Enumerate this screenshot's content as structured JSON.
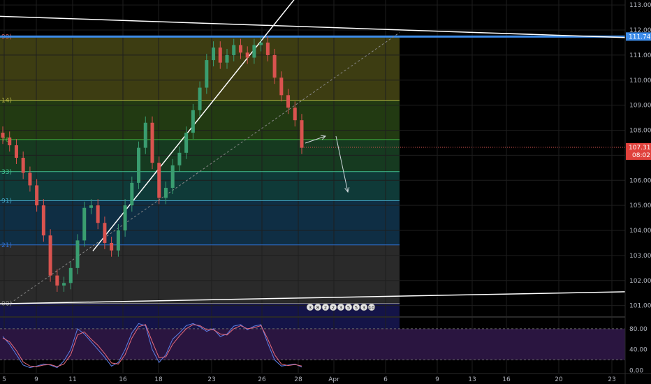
{
  "chart_data": [
    {
      "type": "candlestick",
      "title": "",
      "x_ticks": [
        "5",
        "9",
        "11",
        "16",
        "18",
        "23",
        "26",
        "28",
        "Apr",
        "6",
        "9",
        "13",
        "16",
        "20",
        "23"
      ],
      "y_ticks": [
        "101.000",
        "102.000",
        "103.000",
        "104.000",
        "105.000",
        "106.000",
        "107.000",
        "108.000",
        "109.000",
        "110.000",
        "111.000",
        "112.000",
        "113.000"
      ],
      "ylim": [
        100.6,
        113.2
      ],
      "price_labels": {
        "resistance": "111.741",
        "last": "107.319",
        "countdown": "08:02"
      },
      "fib_level_labels": [
        "99)",
        "14)",
        "76)",
        "33)",
        "91)",
        "21)",
        "00)"
      ],
      "fib_levels": [
        111.741,
        109.201,
        107.627,
        106.349,
        105.186,
        103.421,
        101.085
      ],
      "series": [
        {
          "values": [
            107.7,
            107.4,
            106.9,
            106.3,
            105.8,
            105.0,
            103.8,
            102.2,
            101.8,
            101.9,
            102.5,
            103.6,
            104.9,
            105.0,
            104.3,
            103.5,
            103.2,
            104.0,
            105.0,
            105.9,
            107.3,
            108.3,
            106.7,
            105.3,
            105.7,
            106.6,
            107.1,
            107.9,
            108.8,
            109.7,
            110.8,
            111.3,
            110.7,
            111.0,
            111.4,
            111.1,
            110.9,
            111.4,
            111.5,
            111.0,
            110.1,
            109.4,
            108.9,
            108.4,
            107.3
          ]
        }
      ],
      "events": [
        "3",
        "8",
        "2",
        "2",
        "3",
        "5",
        "5",
        "3",
        "10"
      ]
    },
    {
      "type": "line",
      "title": "",
      "y_ticks": [
        "80.00",
        "40.00",
        "0.00"
      ],
      "ylim": [
        -5,
        100
      ],
      "series": [
        {
          "color": "#5b7ee8",
          "values": [
            65,
            50,
            30,
            10,
            5,
            8,
            12,
            10,
            5,
            18,
            40,
            80,
            70,
            55,
            40,
            25,
            8,
            15,
            40,
            72,
            90,
            86,
            40,
            15,
            30,
            60,
            72,
            86,
            90,
            84,
            75,
            80,
            65,
            70,
            85,
            88,
            78,
            85,
            88,
            52,
            20,
            8,
            10,
            12,
            6
          ]
        },
        {
          "color": "#e86a7b",
          "values": [
            62,
            55,
            38,
            16,
            8,
            7,
            10,
            11,
            7,
            12,
            30,
            68,
            74,
            60,
            48,
            32,
            14,
            12,
            30,
            62,
            84,
            88,
            55,
            24,
            26,
            50,
            66,
            80,
            88,
            86,
            78,
            78,
            70,
            68,
            80,
            86,
            80,
            82,
            86,
            60,
            30,
            12,
            9,
            11,
            8
          ]
        }
      ]
    }
  ]
}
